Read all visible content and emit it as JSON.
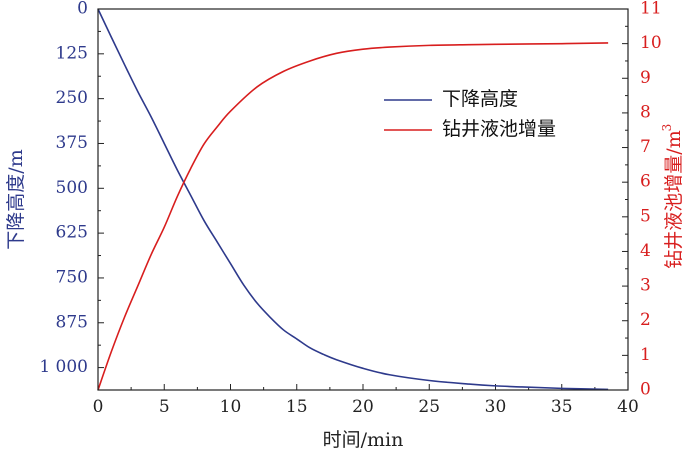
{
  "chart_data": {
    "type": "line",
    "xlabel": "时间/min",
    "xlim": [
      0,
      40
    ],
    "x_ticks": [
      "0",
      "5",
      "10",
      "15",
      "20",
      "25",
      "30",
      "35",
      "40"
    ],
    "y_left": {
      "label": "下降高度/m",
      "lim": [
        0,
        1062.5
      ],
      "inverted": true,
      "ticks": [
        "0",
        "125",
        "250",
        "375",
        "500",
        "625",
        "750",
        "875",
        "1 000"
      ],
      "color": "#2e3a8c"
    },
    "y_right": {
      "label": "钻井液池增量/m",
      "label_superscript": "3",
      "lim": [
        0,
        11
      ],
      "ticks": [
        "0",
        "1",
        "2",
        "3",
        "4",
        "5",
        "6",
        "7",
        "8",
        "9",
        "10",
        "11"
      ],
      "color": "#d81e1e"
    },
    "legend_position": "top-right",
    "series": [
      {
        "name": "下降高度",
        "axis": "left",
        "color": "#2e3a8c",
        "x": [
          0,
          1,
          2,
          3,
          4,
          5,
          6,
          7,
          8,
          9,
          10,
          11,
          12,
          13,
          14,
          15,
          16,
          17,
          18,
          20,
          22,
          25,
          28,
          30,
          32,
          35,
          38.5
        ],
        "y": [
          0,
          78,
          155,
          230,
          300,
          375,
          450,
          520,
          590,
          650,
          710,
          770,
          820,
          860,
          895,
          920,
          945,
          963,
          978,
          1002,
          1020,
          1036,
          1046,
          1051,
          1054,
          1058,
          1061
        ]
      },
      {
        "name": "钻井液池增量",
        "axis": "right",
        "color": "#d81e1e",
        "x": [
          0,
          1,
          2,
          3,
          4,
          5,
          6,
          7,
          8,
          9,
          10,
          12,
          14,
          16,
          18,
          20,
          22,
          25,
          28,
          30,
          35,
          38.5
        ],
        "y": [
          0,
          1.1,
          2.1,
          3.0,
          3.9,
          4.7,
          5.6,
          6.4,
          7.1,
          7.6,
          8.05,
          8.75,
          9.2,
          9.5,
          9.72,
          9.84,
          9.9,
          9.95,
          9.97,
          9.98,
          10.0,
          10.02
        ]
      }
    ]
  }
}
